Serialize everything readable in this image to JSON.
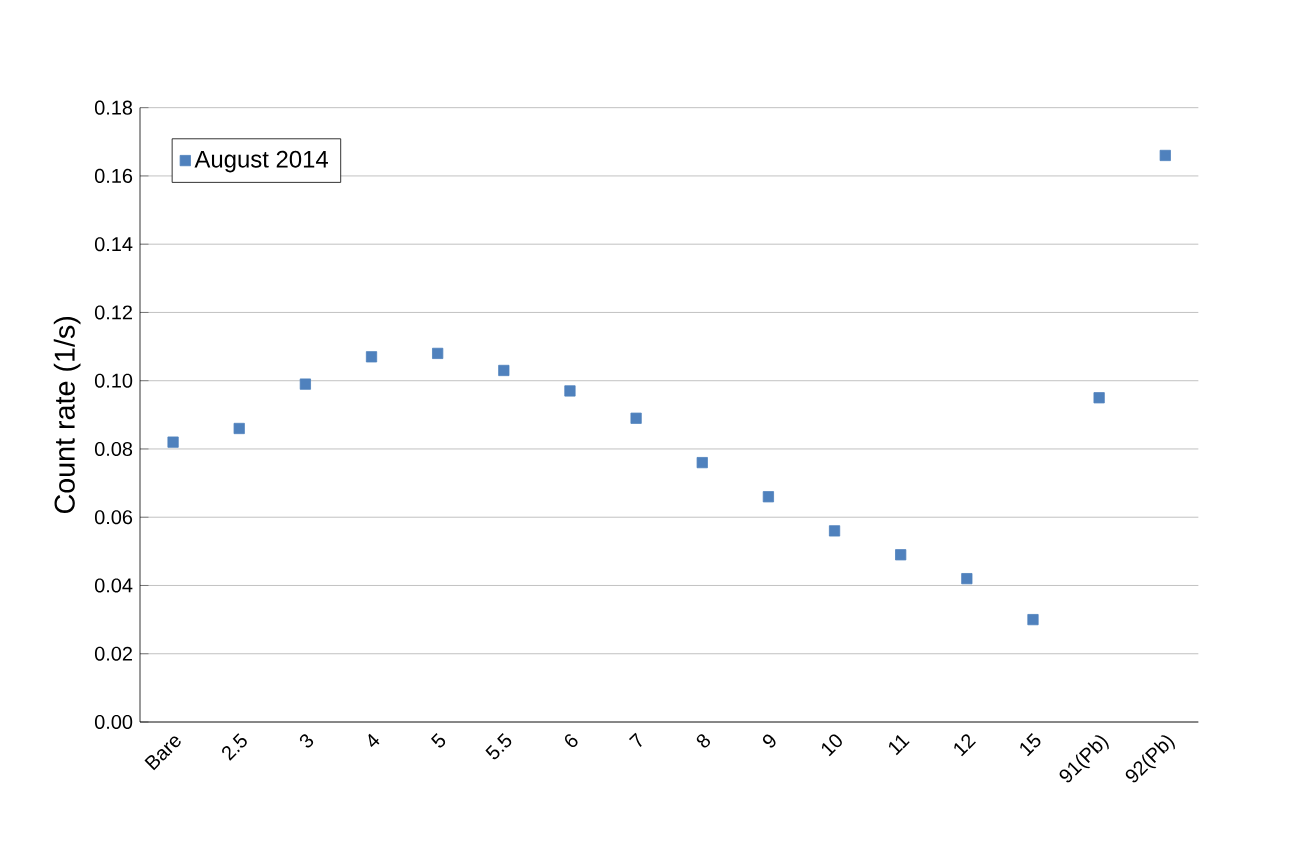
{
  "chart_data": {
    "type": "scatter",
    "ylabel": "Count rate (1/s)",
    "categories": [
      "Bare",
      "2.5",
      "3",
      "4",
      "5",
      "5.5",
      "6",
      "7",
      "8",
      "9",
      "10",
      "11",
      "12",
      "15",
      "91(Pb)",
      "92(Pb)"
    ],
    "series": [
      {
        "name": "August 2014",
        "color": "#4f81bd",
        "values": [
          0.082,
          0.086,
          0.099,
          0.107,
          0.108,
          0.103,
          0.097,
          0.089,
          0.076,
          0.066,
          0.056,
          0.049,
          0.042,
          0.03,
          0.095,
          0.166
        ]
      }
    ],
    "ylim": [
      0,
      0.18
    ],
    "yticks": [
      {
        "value": 0,
        "label": "0.00"
      },
      {
        "value": 0.02,
        "label": "0.02"
      },
      {
        "value": 0.04,
        "label": "0.04"
      },
      {
        "value": 0.06,
        "label": "0.06"
      },
      {
        "value": 0.08,
        "label": "0.08"
      },
      {
        "value": 0.1,
        "label": "0.10"
      },
      {
        "value": 0.12,
        "label": "0.12"
      },
      {
        "value": 0.14,
        "label": "0.14"
      },
      {
        "value": 0.16,
        "label": "0.16"
      },
      {
        "value": 0.18,
        "label": "0.18"
      }
    ],
    "grid": "y",
    "legend": "top left",
    "marker": "square"
  }
}
